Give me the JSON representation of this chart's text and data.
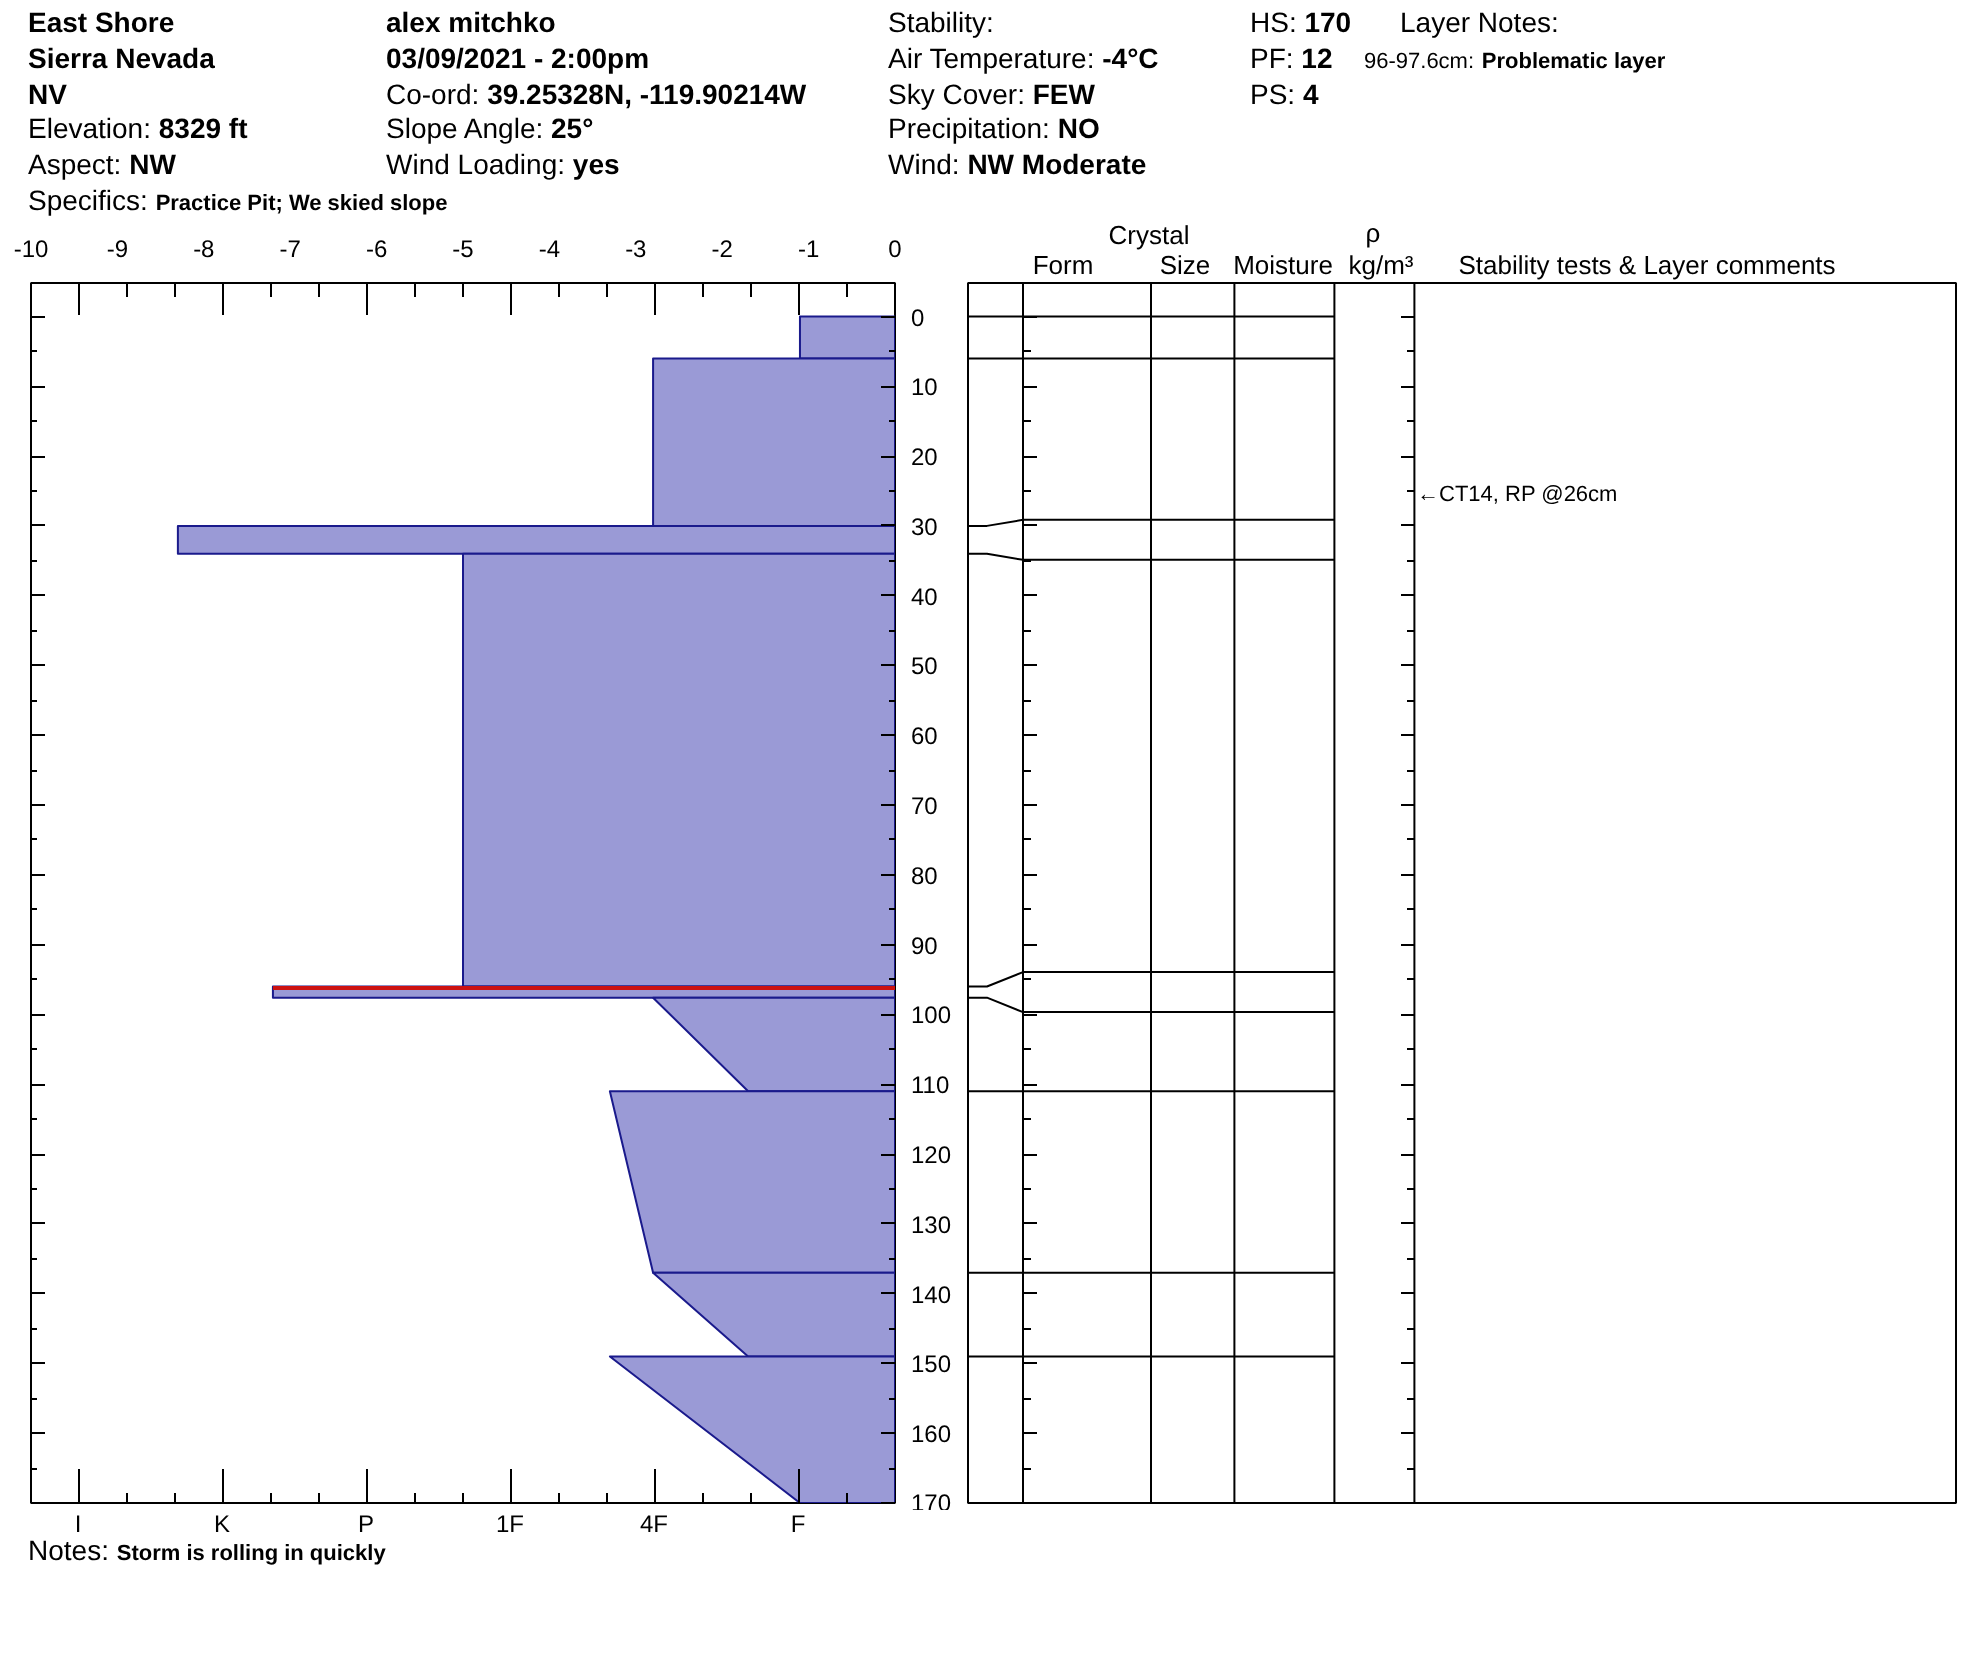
{
  "chart_data": [
    {
      "type": "area",
      "orientation": "horizontal",
      "annotations": [
        "East Shore",
        "alex mitchko",
        "Stability:",
        "HS: 170",
        "Layer Notes:",
        "Sierra Nevada",
        "03/09/2021 - 2:00pm",
        "Air Temperature: -4°C",
        "PF: 12",
        "96-97.6cm: Problematic layer",
        "NV",
        "Co-ord: 39.25328N, -119.90214W",
        "Sky Cover: FEW",
        "PS: 4",
        "Elevation: 8329 ft",
        "Slope Angle: 25°",
        "Precipitation: NO",
        "Aspect: NW",
        "Wind Loading: yes",
        "Wind: NW Moderate",
        "Specifics: Practice Pit; We skied slope",
        "Notes: Storm is rolling in quickly",
        "I",
        "K",
        "P",
        "1F",
        "4F",
        "F"
      ],
      "series": [
        {
          "color": "#9a9ad6",
          "x": [
            0,
            6
          ],
          "values": [
            -1.1,
            -1.1
          ]
        },
        {
          "color": "#9a9ad6",
          "x": [
            6,
            30
          ],
          "values": [
            -2.8,
            -2.8
          ]
        },
        {
          "color": "#9a9ad6",
          "x": [
            30,
            34
          ],
          "values": [
            -8.3,
            -8.3
          ]
        },
        {
          "color": "#9a9ad6",
          "x": [
            34,
            96
          ],
          "values": [
            -5.0,
            -5.0
          ]
        },
        {
          "color": "#9a9ad6",
          "x": [
            96,
            97.6
          ],
          "values": [
            -7.2,
            -7.2
          ]
        },
        {
          "color": "#9a9ad6",
          "x": [
            97.6,
            111
          ],
          "values": [
            -2.8,
            -1.7
          ]
        },
        {
          "color": "#9a9ad6",
          "x": [
            111,
            137
          ],
          "values": [
            -3.3,
            -2.8
          ]
        },
        {
          "color": "#9a9ad6",
          "x": [
            137,
            149
          ],
          "values": [
            -2.8,
            -1.7
          ]
        },
        {
          "color": "#9a9ad6",
          "x": [
            149,
            170
          ],
          "values": [
            -3.3,
            -1.1
          ]
        },
        {
          "type": "line",
          "color": "#cc1111",
          "x": [
            96.2,
            96.2
          ],
          "values": [
            -7.2,
            0
          ]
        }
      ],
      "xlim": [
        -10,
        0
      ],
      "xticks": [
        -10,
        -9,
        -8,
        -7,
        -6,
        -5,
        -4,
        -3,
        -2,
        -1,
        0
      ],
      "ylim": [
        170,
        -4.8
      ],
      "yticks": [
        0,
        10,
        20,
        30,
        40,
        50,
        60,
        70,
        80,
        90,
        100,
        110,
        120,
        130,
        140,
        150,
        160,
        170
      ]
    },
    {
      "type": "other",
      "annotations": [
        "Crystal",
        "Form",
        "Size",
        "Moisture",
        "ρ",
        "kg/m³",
        "Stability tests & Layer comments",
        "←CT14, RP @26cm"
      ]
    }
  ]
}
